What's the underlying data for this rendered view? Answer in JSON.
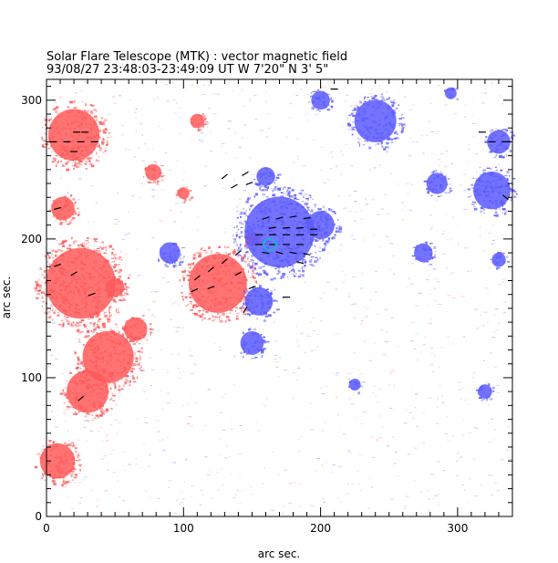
{
  "chart_data": {
    "type": "heatmap",
    "title": "Solar Flare Telescope (MTK) : vector magnetic field",
    "subtitle": "93/08/27  23:48:03-23:49:09 UT     W 7'20\"  N 3' 5\"",
    "xlabel": "arc sec.",
    "ylabel": "arc sec.",
    "xlim": [
      0,
      340
    ],
    "ylim": [
      0,
      315
    ],
    "x_ticks": [
      0,
      100,
      200,
      300
    ],
    "y_ticks": [
      0,
      100,
      200,
      300
    ],
    "grid": false,
    "colors": {
      "positive_polarity": "#ff5a5a",
      "negative_polarity": "#5a5aff",
      "transverse_field_vectors": "#000000",
      "contour": "#00c8c8",
      "axes": "#000000"
    },
    "positive_regions": [
      {
        "x": 20,
        "y": 275,
        "size": 22
      },
      {
        "x": 12,
        "y": 222,
        "size": 10
      },
      {
        "x": 25,
        "y": 168,
        "size": 30
      },
      {
        "x": 45,
        "y": 115,
        "size": 22
      },
      {
        "x": 30,
        "y": 90,
        "size": 18
      },
      {
        "x": 8,
        "y": 40,
        "size": 15
      },
      {
        "x": 125,
        "y": 168,
        "size": 25
      },
      {
        "x": 65,
        "y": 135,
        "size": 10
      },
      {
        "x": 78,
        "y": 248,
        "size": 7
      },
      {
        "x": 100,
        "y": 233,
        "size": 5
      },
      {
        "x": 110,
        "y": 285,
        "size": 6
      },
      {
        "x": 150,
        "y": 200,
        "size": 6
      },
      {
        "x": 50,
        "y": 165,
        "size": 8
      }
    ],
    "negative_regions": [
      {
        "x": 170,
        "y": 205,
        "size": 30
      },
      {
        "x": 200,
        "y": 210,
        "size": 12
      },
      {
        "x": 155,
        "y": 155,
        "size": 12
      },
      {
        "x": 90,
        "y": 190,
        "size": 9
      },
      {
        "x": 150,
        "y": 125,
        "size": 10
      },
      {
        "x": 240,
        "y": 285,
        "size": 18
      },
      {
        "x": 325,
        "y": 235,
        "size": 16
      },
      {
        "x": 330,
        "y": 270,
        "size": 10
      },
      {
        "x": 160,
        "y": 245,
        "size": 8
      },
      {
        "x": 285,
        "y": 240,
        "size": 9
      },
      {
        "x": 275,
        "y": 190,
        "size": 8
      },
      {
        "x": 330,
        "y": 185,
        "size": 6
      },
      {
        "x": 200,
        "y": 300,
        "size": 8
      },
      {
        "x": 225,
        "y": 95,
        "size": 5
      },
      {
        "x": 320,
        "y": 90,
        "size": 6
      },
      {
        "x": 295,
        "y": 305,
        "size": 5
      }
    ],
    "field_vectors": [
      {
        "x": 160,
        "y": 215,
        "angle": 20
      },
      {
        "x": 170,
        "y": 215,
        "angle": 15
      },
      {
        "x": 180,
        "y": 216,
        "angle": 10
      },
      {
        "x": 190,
        "y": 215,
        "angle": 10
      },
      {
        "x": 165,
        "y": 208,
        "angle": 10
      },
      {
        "x": 175,
        "y": 208,
        "angle": 5
      },
      {
        "x": 185,
        "y": 208,
        "angle": 5
      },
      {
        "x": 195,
        "y": 207,
        "angle": 0
      },
      {
        "x": 155,
        "y": 203,
        "angle": 0
      },
      {
        "x": 165,
        "y": 203,
        "angle": 0
      },
      {
        "x": 175,
        "y": 203,
        "angle": 0
      },
      {
        "x": 185,
        "y": 203,
        "angle": 0
      },
      {
        "x": 195,
        "y": 203,
        "angle": 0
      },
      {
        "x": 155,
        "y": 196,
        "angle": 0
      },
      {
        "x": 165,
        "y": 196,
        "angle": 0
      },
      {
        "x": 175,
        "y": 196,
        "angle": 0
      },
      {
        "x": 185,
        "y": 196,
        "angle": 0
      },
      {
        "x": 160,
        "y": 190,
        "angle": -10
      },
      {
        "x": 170,
        "y": 190,
        "angle": -15
      },
      {
        "x": 180,
        "y": 190,
        "angle": -10
      },
      {
        "x": 190,
        "y": 189,
        "angle": -10
      },
      {
        "x": 185,
        "y": 183,
        "angle": -15
      },
      {
        "x": 140,
        "y": 190,
        "angle": 40
      },
      {
        "x": 130,
        "y": 184,
        "angle": 40
      },
      {
        "x": 120,
        "y": 178,
        "angle": 40
      },
      {
        "x": 110,
        "y": 172,
        "angle": 40
      },
      {
        "x": 140,
        "y": 175,
        "angle": 30
      },
      {
        "x": 120,
        "y": 165,
        "angle": 20
      },
      {
        "x": 108,
        "y": 163,
        "angle": 25
      },
      {
        "x": 145,
        "y": 149,
        "angle": 60
      },
      {
        "x": 175,
        "y": 158,
        "angle": 0
      },
      {
        "x": 150,
        "y": 165,
        "angle": 20
      },
      {
        "x": 130,
        "y": 245,
        "angle": 40
      },
      {
        "x": 145,
        "y": 247,
        "angle": 30
      },
      {
        "x": 148,
        "y": 240,
        "angle": 20
      },
      {
        "x": 137,
        "y": 238,
        "angle": 30
      },
      {
        "x": 5,
        "y": 270,
        "angle": 0
      },
      {
        "x": 15,
        "y": 270,
        "angle": 0
      },
      {
        "x": 25,
        "y": 270,
        "angle": 0
      },
      {
        "x": 35,
        "y": 270,
        "angle": 0
      },
      {
        "x": 22,
        "y": 277,
        "angle": 0
      },
      {
        "x": 28,
        "y": 277,
        "angle": 0
      },
      {
        "x": 20,
        "y": 263,
        "angle": 0
      },
      {
        "x": 8,
        "y": 222,
        "angle": 15
      },
      {
        "x": 8,
        "y": 181,
        "angle": 20
      },
      {
        "x": 20,
        "y": 175,
        "angle": 30
      },
      {
        "x": 33,
        "y": 160,
        "angle": 20
      },
      {
        "x": 25,
        "y": 85,
        "angle": 40
      },
      {
        "x": 318,
        "y": 277,
        "angle": 0
      },
      {
        "x": 325,
        "y": 270,
        "angle": 0
      },
      {
        "x": 335,
        "y": 270,
        "angle": 0
      },
      {
        "x": 335,
        "y": 230,
        "angle": -40
      },
      {
        "x": 210,
        "y": 308,
        "angle": 0
      }
    ],
    "contours": [
      {
        "x": 163,
        "y": 196,
        "rx": 4.5,
        "ry": 4
      }
    ]
  }
}
